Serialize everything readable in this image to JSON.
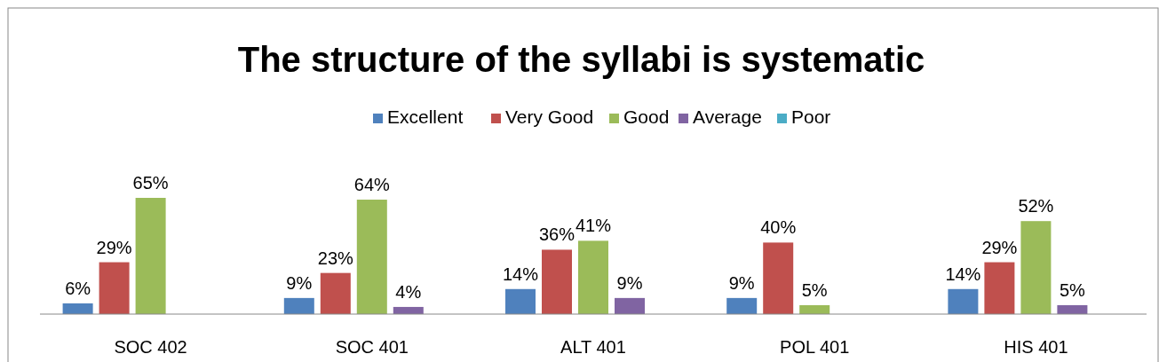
{
  "chart_data": {
    "type": "bar",
    "title": "The structure of the syllabi is systematic",
    "categories": [
      "SOC 402",
      "SOC 401",
      "ALT 401",
      "POL 401",
      "HIS 401"
    ],
    "legend": "top",
    "series": [
      {
        "name": "Excellent",
        "color": "#4f81bd",
        "values": [
          6,
          9,
          14,
          9,
          14
        ],
        "value_labels": [
          "6%",
          "9%",
          "14%",
          "9%",
          "14%"
        ]
      },
      {
        "name": "Very Good",
        "color": "#c0504d",
        "values": [
          29,
          23,
          36,
          40,
          29
        ],
        "value_labels": [
          "29%",
          "23%",
          "36%",
          "40%",
          "29%"
        ]
      },
      {
        "name": "Good",
        "color": "#9bbb59",
        "values": [
          65,
          64,
          41,
          5,
          52
        ],
        "value_labels": [
          "65%",
          "64%",
          "41%",
          "5%",
          "52%"
        ]
      },
      {
        "name": "Average",
        "color": "#8064a2",
        "values": [
          null,
          4,
          9,
          null,
          5
        ],
        "value_labels": [
          null,
          "4%",
          "9%",
          null,
          "5%"
        ]
      },
      {
        "name": "Poor",
        "color": "#4bacc6",
        "values": [
          null,
          null,
          null,
          null,
          null
        ],
        "value_labels": [
          null,
          null,
          null,
          null,
          null
        ]
      }
    ]
  }
}
